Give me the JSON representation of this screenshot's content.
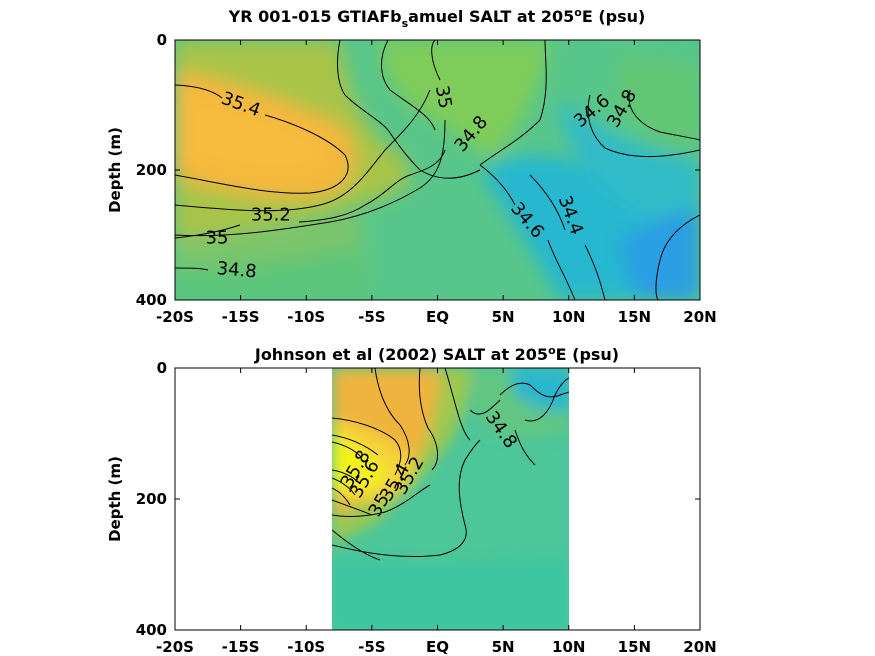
{
  "chart_data": [
    {
      "type": "heatmap",
      "subtype": "filled contour",
      "title": {
        "main": "YR 001-015 GTIAFb",
        "sub": "s",
        "rest": "amuel SALT at 205",
        "sup": "o",
        "tail": "E (psu)"
      },
      "ylabel": "Depth (m)",
      "xlim": [
        -20,
        20
      ],
      "ylim": [
        0,
        400
      ],
      "y_reversed": true,
      "x_tick_labels": [
        "-20S",
        "-15S",
        "-10S",
        "-5S",
        "EQ",
        "5N",
        "10N",
        "15N",
        "20N"
      ],
      "x_ticks": [
        -20,
        -15,
        -10,
        -5,
        0,
        5,
        10,
        15,
        20
      ],
      "y_tick_labels": [
        "0",
        "200",
        "400"
      ],
      "y_ticks": [
        0,
        200,
        400
      ],
      "data_extent_x": [
        -20,
        20
      ],
      "contour_labels": [
        {
          "text": "35.4",
          "x": -15.0,
          "y": 100
        },
        {
          "text": "35",
          "x": 0.4,
          "y": 88
        },
        {
          "text": "34.8",
          "x": 2.6,
          "y": 145
        },
        {
          "text": "34.6",
          "x": 11.8,
          "y": 110
        },
        {
          "text": "34.8",
          "x": 14.1,
          "y": 106
        },
        {
          "text": "35.2",
          "x": -12.7,
          "y": 270
        },
        {
          "text": "35",
          "x": -16.8,
          "y": 305
        },
        {
          "text": "34.8",
          "x": -15.3,
          "y": 355
        },
        {
          "text": "34.6",
          "x": 6.8,
          "y": 278
        },
        {
          "text": "34.4",
          "x": 10.1,
          "y": 270
        }
      ]
    },
    {
      "type": "heatmap",
      "subtype": "filled contour",
      "title": {
        "main": "Johnson et al (2002) SALT at 205",
        "sup": "o",
        "tail": "E (psu)"
      },
      "ylabel": "Depth (m)",
      "xlim": [
        -20,
        20
      ],
      "ylim": [
        0,
        400
      ],
      "y_reversed": true,
      "x_tick_labels": [
        "-20S",
        "-15S",
        "-10S",
        "-5S",
        "EQ",
        "5N",
        "10N",
        "15N",
        "20N"
      ],
      "x_ticks": [
        -20,
        -15,
        -10,
        -5,
        0,
        5,
        10,
        15,
        20
      ],
      "y_tick_labels": [
        "0",
        "200",
        "400"
      ],
      "y_ticks": [
        0,
        200,
        400
      ],
      "data_extent_x": [
        -8,
        10
      ],
      "contour_labels": [
        {
          "text": "34.8",
          "x": 4.8,
          "y": 95
        },
        {
          "text": "35",
          "x": -4.4,
          "y": 210
        },
        {
          "text": "35.2",
          "x": -2.1,
          "y": 165
        },
        {
          "text": "35.4",
          "x": -3.2,
          "y": 175
        },
        {
          "text": "35.6",
          "x": -5.5,
          "y": 170
        },
        {
          "text": "35.8",
          "x": -6.2,
          "y": 155
        }
      ]
    }
  ],
  "colors": {
    "high": "#f5c23a",
    "mid": "#62c878",
    "low": "#2aa2e6",
    "max": "#f4f21a"
  }
}
